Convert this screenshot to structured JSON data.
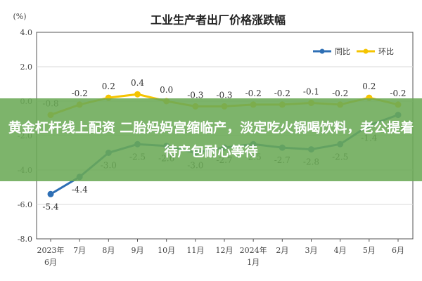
{
  "chart_data": {
    "type": "line",
    "title": "工业生产者出厂价格涨跌幅",
    "ylabel": "(%)",
    "ylim": [
      -8.0,
      4.0
    ],
    "yticks": [
      "4.0",
      "2.0",
      "0.0",
      "-2.0",
      "-4.0",
      "-6.0",
      "-8.0"
    ],
    "ytick_values": [
      4,
      2,
      0,
      -2,
      -4,
      -6,
      -8
    ],
    "categories": [
      "2023年6月",
      "7月",
      "8月",
      "9月",
      "10月",
      "11月",
      "12月",
      "2024年1月",
      "2月",
      "3月",
      "4月",
      "5月",
      "6月"
    ],
    "category_lines": [
      [
        "2023年",
        "6月"
      ],
      [
        "7月"
      ],
      [
        "8月"
      ],
      [
        "9月"
      ],
      [
        "10月"
      ],
      [
        "11月"
      ],
      [
        "12月"
      ],
      [
        "2024年",
        "1月"
      ],
      [
        "2月"
      ],
      [
        "3月"
      ],
      [
        "4月"
      ],
      [
        "5月"
      ],
      [
        "6月"
      ]
    ],
    "series": [
      {
        "name": "同比",
        "color": "#2E6FB5",
        "values": [
          -5.4,
          -4.4,
          -3.0,
          -2.5,
          -2.6,
          -3.0,
          -2.7,
          -2.5,
          -2.7,
          -2.8,
          -2.5,
          -1.4,
          -0.8
        ],
        "labels": [
          "-5.4",
          "-4.4",
          "-3.0",
          "-2.5",
          "-2.6",
          "-3.0",
          "-2.7",
          "-2.5",
          "-2.7",
          "-2.8",
          "-2.5",
          "-1.4",
          "-0.8"
        ]
      },
      {
        "name": "环比",
        "color": "#F5C400",
        "values": [
          -0.8,
          -0.2,
          0.2,
          0.4,
          0.0,
          -0.3,
          -0.3,
          -0.2,
          -0.2,
          -0.1,
          -0.2,
          0.2,
          -0.2
        ],
        "labels": [
          "-0.8",
          "-0.2",
          "0.2",
          "0.4",
          "0.0",
          "-0.3",
          "-0.3",
          "-0.2",
          "-0.2",
          "-0.1",
          "-0.2",
          "0.2",
          "-0.2"
        ]
      }
    ],
    "legend_position": "top-right",
    "grid": true
  },
  "overlay": {
    "text": "黄金杠杆线上配资 二胎妈妈宫缩临产，淡定吃火锅喝饮料，老公提着待产包耐心等待"
  },
  "colors": {
    "plot_border": "#555555",
    "overlay_green": "#6BAA56"
  }
}
